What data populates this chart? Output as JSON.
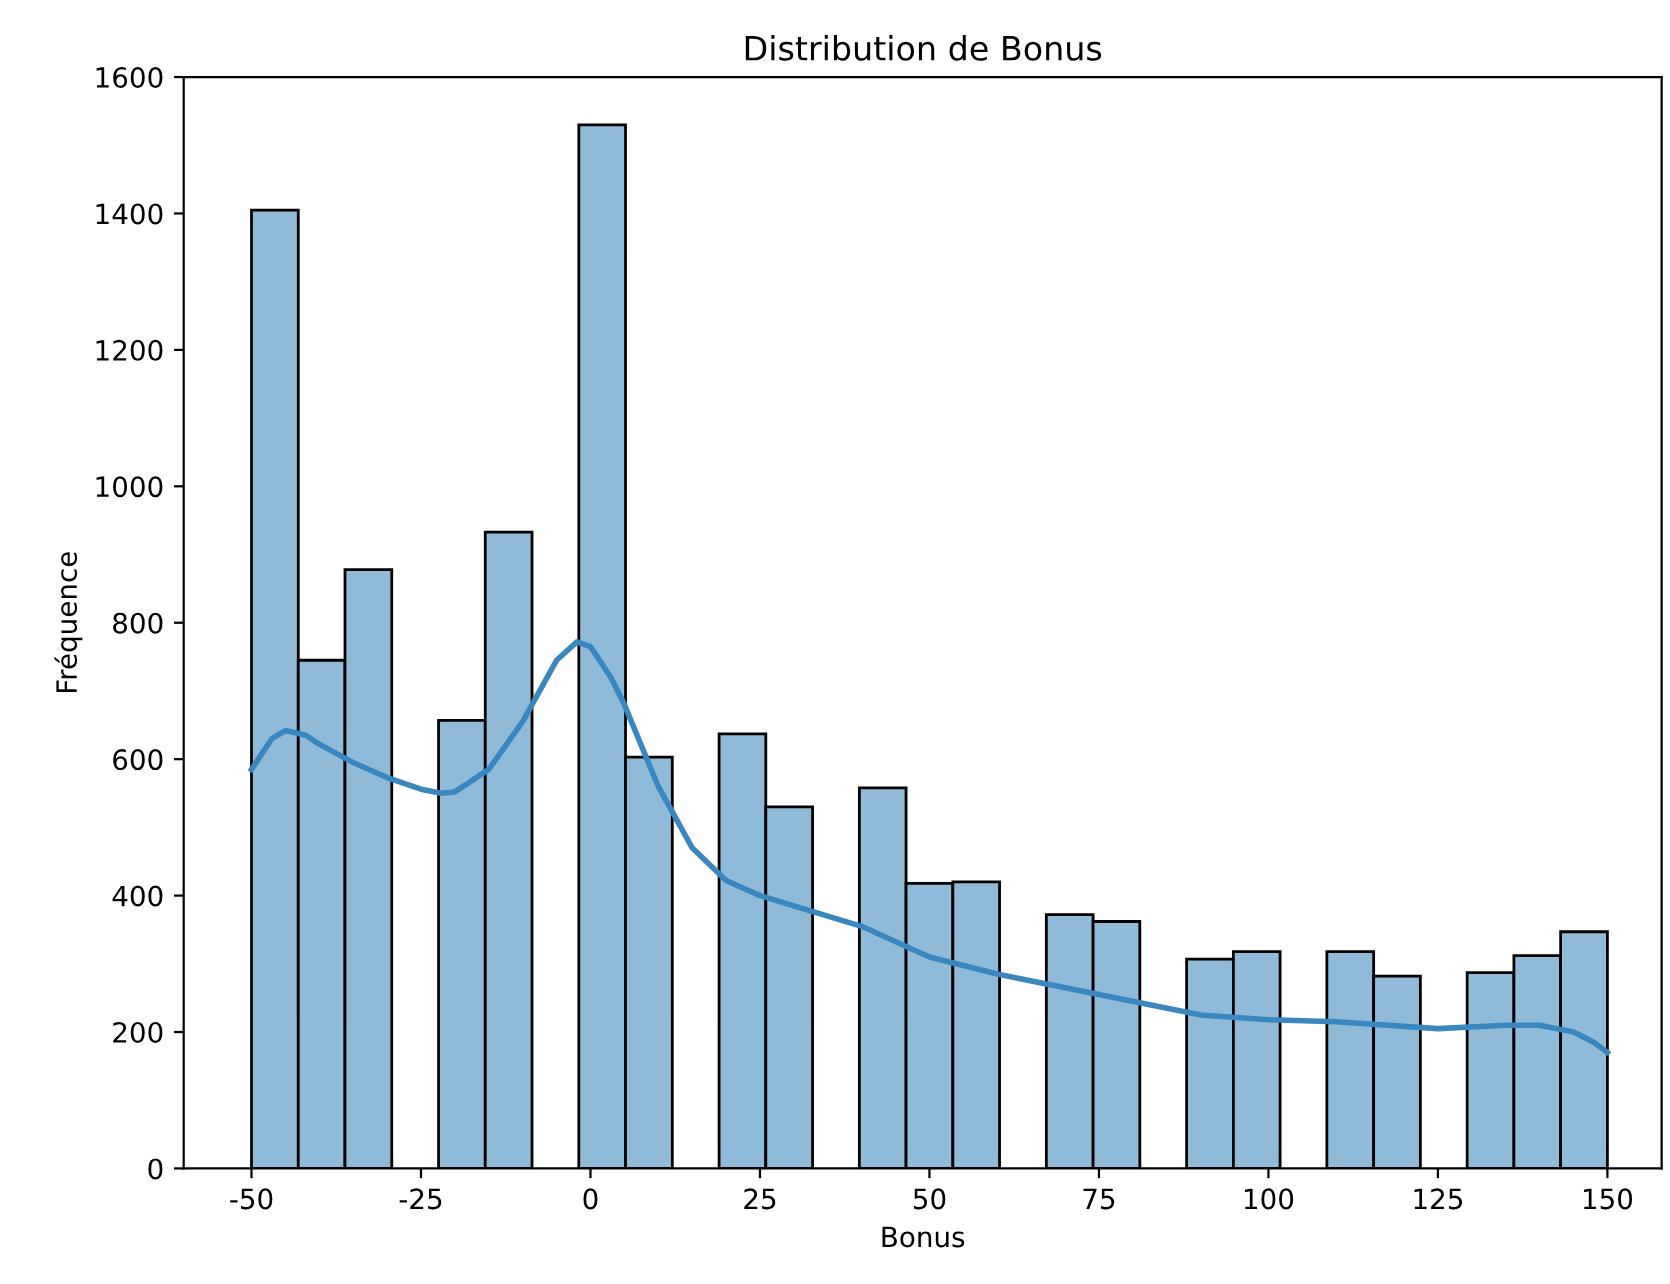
{
  "chart_data": {
    "type": "histogram",
    "title": "Distribution de Bonus",
    "xlabel": "Bonus",
    "ylabel": "Fréquence",
    "series": [
      {
        "color": "#8fbbd9",
        "bins": [
          -50.0,
          -43.1,
          -36.21,
          -29.31,
          -22.41,
          -15.52,
          -8.62,
          -1.72,
          5.17,
          12.07,
          18.97,
          25.86,
          32.76,
          39.66,
          46.55,
          53.45,
          60.34,
          67.24,
          74.14,
          81.03,
          87.93,
          94.83,
          101.72,
          108.62,
          115.52,
          122.41,
          129.31,
          136.21,
          143.1,
          150.0
        ],
        "values": [
          1405,
          745,
          878,
          0,
          657,
          933,
          0,
          1530,
          603,
          0,
          637,
          530,
          0,
          558,
          418,
          420,
          0,
          372,
          362,
          0,
          307,
          318,
          0,
          318,
          282,
          0,
          287,
          312,
          347
        ]
      },
      {
        "type": "line",
        "color": "#3a87c0",
        "x": [
          -50,
          -47,
          -45,
          -42,
          -40,
          -35,
          -30,
          -25,
          -22,
          -20,
          -15,
          -10,
          -5,
          -2,
          0,
          3,
          5,
          10,
          15,
          20,
          25,
          30,
          40,
          50,
          60,
          75,
          90,
          100,
          110,
          125,
          135,
          140,
          145,
          148,
          150
        ],
        "values": [
          585,
          630,
          642,
          635,
          622,
          595,
          573,
          556,
          550,
          552,
          585,
          655,
          745,
          772,
          765,
          720,
          680,
          560,
          470,
          422,
          400,
          385,
          355,
          310,
          285,
          255,
          225,
          218,
          215,
          205,
          210,
          210,
          200,
          185,
          170
        ]
      }
    ],
    "xlim": [
      -60,
      158
    ],
    "xticks": [
      -50,
      -25,
      0,
      25,
      50,
      75,
      100,
      125,
      150
    ],
    "ylim": [
      0,
      1600
    ],
    "yticks": [
      0,
      200,
      400,
      600,
      800,
      1000,
      1200,
      1400,
      1600
    ],
    "grid": false,
    "legend": false
  }
}
